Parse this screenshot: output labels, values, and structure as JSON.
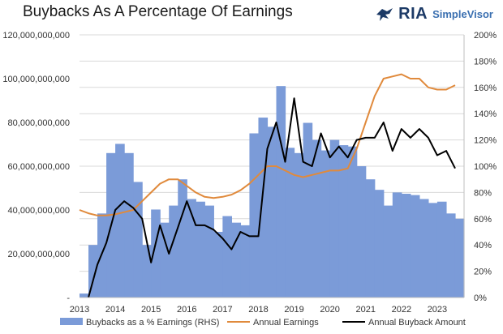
{
  "title": "Buybacks As A Percentage Of Earnings",
  "brand": {
    "name": "RIA",
    "sub": "SimpleVisor",
    "icon": "eagle-icon",
    "color": "#1c3a66"
  },
  "chart_data": {
    "type": "bar+line",
    "title": "Buybacks As A Percentage Of Earnings",
    "x_labels": [
      "2013",
      "2014",
      "2015",
      "2016",
      "2017",
      "2018",
      "2019",
      "2020",
      "2021",
      "2022",
      "2023"
    ],
    "x_range": [
      2013,
      2023.75
    ],
    "y_left": {
      "range": [
        0,
        120000000000
      ],
      "ticks": [
        "-",
        "20,000,000,000",
        "40,000,000,000",
        "60,000,000,000",
        "80,000,000,000",
        "100,000,000,000",
        "120,000,000,000"
      ]
    },
    "y_right": {
      "range": [
        0,
        200
      ],
      "ticks": [
        "0%",
        "20%",
        "40%",
        "60%",
        "80%",
        "100%",
        "120%",
        "140%",
        "160%",
        "180%",
        "200%"
      ]
    },
    "series": [
      {
        "name": "Buybacks as a % Earnings (RHS)",
        "kind": "bar",
        "axis": "right",
        "color": "#7b9bd8",
        "x": [
          2013.0,
          2013.25,
          2013.5,
          2013.75,
          2014.0,
          2014.25,
          2014.5,
          2014.75,
          2015.0,
          2015.25,
          2015.5,
          2015.75,
          2016.0,
          2016.25,
          2016.5,
          2016.75,
          2017.0,
          2017.25,
          2017.5,
          2017.75,
          2018.0,
          2018.25,
          2018.5,
          2018.75,
          2019.0,
          2019.25,
          2019.5,
          2019.75,
          2020.0,
          2020.25,
          2020.5,
          2020.75,
          2021.0,
          2021.25,
          2021.5,
          2021.75,
          2022.0,
          2022.25,
          2022.5,
          2022.75,
          2023.0,
          2023.25,
          2023.5
        ],
        "values": [
          3,
          40,
          64,
          110,
          117,
          110,
          88,
          40,
          67,
          57,
          70,
          90,
          75,
          73,
          70,
          50,
          62,
          57,
          55,
          125,
          137,
          130,
          161,
          114,
          110,
          133,
          120,
          112,
          120,
          116,
          115,
          100,
          90,
          82,
          70,
          80,
          79,
          78,
          75,
          72,
          73,
          64,
          60
        ]
      },
      {
        "name": "Annual Earnings",
        "kind": "line",
        "axis": "left",
        "color": "#e08a3c",
        "x": [
          2013.0,
          2013.25,
          2013.5,
          2013.75,
          2014.0,
          2014.25,
          2014.5,
          2014.75,
          2015.0,
          2015.25,
          2015.5,
          2015.75,
          2016.0,
          2016.25,
          2016.5,
          2016.75,
          2017.0,
          2017.25,
          2017.5,
          2017.75,
          2018.0,
          2018.25,
          2018.5,
          2018.75,
          2019.0,
          2019.25,
          2019.5,
          2019.75,
          2020.0,
          2020.25,
          2020.5,
          2020.75,
          2021.0,
          2021.25,
          2021.5,
          2021.75,
          2022.0,
          2022.25,
          2022.5,
          2022.75,
          2023.0,
          2023.25,
          2023.5
        ],
        "values": [
          40000000000,
          38500000000,
          37500000000,
          37500000000,
          38000000000,
          39000000000,
          40000000000,
          44000000000,
          48000000000,
          52000000000,
          54000000000,
          54000000000,
          51000000000,
          48000000000,
          46000000000,
          45500000000,
          46000000000,
          47000000000,
          49000000000,
          52000000000,
          56000000000,
          60000000000,
          60000000000,
          58000000000,
          56000000000,
          55000000000,
          56000000000,
          57000000000,
          58000000000,
          58000000000,
          59000000000,
          68000000000,
          80000000000,
          92000000000,
          100000000000,
          101000000000,
          102000000000,
          100000000000,
          100000000000,
          96000000000,
          95000000000,
          95000000000,
          97000000000
        ]
      },
      {
        "name": "Annual Buyback Amount",
        "kind": "line",
        "axis": "left",
        "color": "#000000",
        "x": [
          2013.25,
          2013.5,
          2013.75,
          2014.0,
          2014.25,
          2014.5,
          2014.75,
          2015.0,
          2015.25,
          2015.5,
          2015.75,
          2016.0,
          2016.25,
          2016.5,
          2016.75,
          2017.0,
          2017.25,
          2017.5,
          2017.75,
          2018.0,
          2018.25,
          2018.5,
          2018.75,
          2019.0,
          2019.25,
          2019.5,
          2019.75,
          2020.0,
          2020.25,
          2020.5,
          2020.75,
          2021.0,
          2021.25,
          2021.5,
          2021.75,
          2022.0,
          2022.25,
          2022.5,
          2022.75,
          2023.0,
          2023.25,
          2023.5
        ],
        "values": [
          0,
          15000000000,
          25000000000,
          40000000000,
          44000000000,
          41000000000,
          36000000000,
          16000000000,
          33000000000,
          20000000000,
          32000000000,
          44000000000,
          33000000000,
          33000000000,
          31000000000,
          27000000000,
          22000000000,
          30000000000,
          28000000000,
          28000000000,
          68000000000,
          80000000000,
          62000000000,
          91000000000,
          62000000000,
          60000000000,
          75000000000,
          64000000000,
          69000000000,
          64000000000,
          72000000000,
          73000000000,
          73000000000,
          80000000000,
          67000000000,
          77000000000,
          73000000000,
          77000000000,
          73000000000,
          65000000000,
          67000000000,
          59000000000
        ]
      }
    ],
    "legend_position": "bottom",
    "grid": "horizontal"
  }
}
